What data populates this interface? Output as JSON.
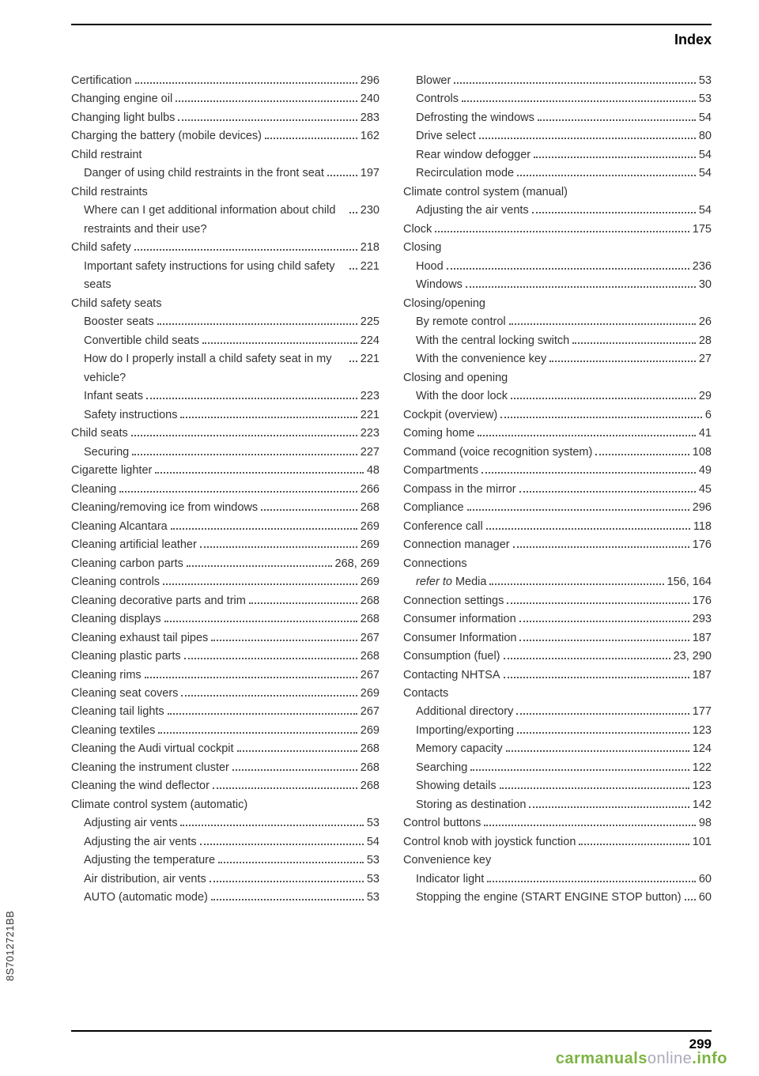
{
  "header": {
    "title": "Index"
  },
  "spine": "8S7012721BB",
  "footer": {
    "page": "299"
  },
  "watermark": {
    "a": "carmanuals",
    "b": "online",
    "c": ".info"
  },
  "left": [
    {
      "t": "e",
      "label": "Certification",
      "pg": "296"
    },
    {
      "t": "e",
      "label": "Changing engine oil",
      "pg": "240"
    },
    {
      "t": "e",
      "label": "Changing light bulbs",
      "pg": "283"
    },
    {
      "t": "e",
      "label": "Charging the battery (mobile devices)",
      "pg": "162"
    },
    {
      "t": "h",
      "label": "Child restraint"
    },
    {
      "t": "s",
      "label": "Danger of using child restraints in the front seat",
      "pg": "197"
    },
    {
      "t": "h",
      "label": "Child restraints"
    },
    {
      "t": "s",
      "label": "Where can I get additional information about child restraints and their use?",
      "pg": "230"
    },
    {
      "t": "e",
      "label": "Child safety",
      "pg": "218"
    },
    {
      "t": "s",
      "label": "Important safety instructions for using child safety seats",
      "pg": "221"
    },
    {
      "t": "h",
      "label": "Child safety seats"
    },
    {
      "t": "s",
      "label": "Booster seats",
      "pg": "225"
    },
    {
      "t": "s",
      "label": "Convertible child seats",
      "pg": "224"
    },
    {
      "t": "s",
      "label": "How do I properly install a child safety seat in my vehicle?",
      "pg": "221"
    },
    {
      "t": "s",
      "label": "Infant seats",
      "pg": "223"
    },
    {
      "t": "s",
      "label": "Safety instructions",
      "pg": "221"
    },
    {
      "t": "e",
      "label": "Child seats",
      "pg": "223"
    },
    {
      "t": "s",
      "label": "Securing",
      "pg": "227"
    },
    {
      "t": "e",
      "label": "Cigarette lighter",
      "pg": "48"
    },
    {
      "t": "e",
      "label": "Cleaning",
      "pg": "266"
    },
    {
      "t": "e",
      "label": "Cleaning/removing ice from windows",
      "pg": "268"
    },
    {
      "t": "e",
      "label": "Cleaning Alcantara",
      "pg": "269"
    },
    {
      "t": "e",
      "label": "Cleaning artificial leather",
      "pg": "269"
    },
    {
      "t": "e",
      "label": "Cleaning carbon parts",
      "pg": "268, 269"
    },
    {
      "t": "e",
      "label": "Cleaning controls",
      "pg": "269"
    },
    {
      "t": "e",
      "label": "Cleaning decorative parts and trim",
      "pg": "268"
    },
    {
      "t": "e",
      "label": "Cleaning displays",
      "pg": "268"
    },
    {
      "t": "e",
      "label": "Cleaning exhaust tail pipes",
      "pg": "267"
    },
    {
      "t": "e",
      "label": "Cleaning plastic parts",
      "pg": "268"
    },
    {
      "t": "e",
      "label": "Cleaning rims",
      "pg": "267"
    },
    {
      "t": "e",
      "label": "Cleaning seat covers",
      "pg": "269"
    },
    {
      "t": "e",
      "label": "Cleaning tail lights",
      "pg": "267"
    },
    {
      "t": "e",
      "label": "Cleaning textiles",
      "pg": "269"
    },
    {
      "t": "e",
      "label": "Cleaning the Audi virtual cockpit",
      "pg": "268"
    },
    {
      "t": "e",
      "label": "Cleaning the instrument cluster",
      "pg": "268"
    },
    {
      "t": "e",
      "label": "Cleaning the wind deflector",
      "pg": "268"
    },
    {
      "t": "h",
      "label": "Climate control system (automatic)"
    },
    {
      "t": "s",
      "label": "Adjusting air vents",
      "pg": "53"
    },
    {
      "t": "s",
      "label": "Adjusting the air vents",
      "pg": "54"
    },
    {
      "t": "s",
      "label": "Adjusting the temperature",
      "pg": "53"
    },
    {
      "t": "s",
      "label": "Air distribution, air vents",
      "pg": "53"
    },
    {
      "t": "s",
      "label": "AUTO (automatic mode)",
      "pg": "53"
    }
  ],
  "right": [
    {
      "t": "s",
      "label": "Blower",
      "pg": "53"
    },
    {
      "t": "s",
      "label": "Controls",
      "pg": "53"
    },
    {
      "t": "s",
      "label": "Defrosting the windows",
      "pg": "54"
    },
    {
      "t": "s",
      "label": "Drive select",
      "pg": "80"
    },
    {
      "t": "s",
      "label": "Rear window defogger",
      "pg": "54"
    },
    {
      "t": "s",
      "label": "Recirculation mode",
      "pg": "54"
    },
    {
      "t": "h",
      "label": "Climate control system (manual)"
    },
    {
      "t": "s",
      "label": "Adjusting the air vents",
      "pg": "54"
    },
    {
      "t": "e",
      "label": "Clock",
      "pg": "175"
    },
    {
      "t": "h",
      "label": "Closing"
    },
    {
      "t": "s",
      "label": "Hood",
      "pg": "236"
    },
    {
      "t": "s",
      "label": "Windows",
      "pg": "30"
    },
    {
      "t": "h",
      "label": "Closing/opening"
    },
    {
      "t": "s",
      "label": "By remote control",
      "pg": "26"
    },
    {
      "t": "s",
      "label": "With the central locking switch",
      "pg": "28"
    },
    {
      "t": "s",
      "label": "With the convenience key",
      "pg": "27"
    },
    {
      "t": "h",
      "label": "Closing and opening"
    },
    {
      "t": "s",
      "label": "With the door lock",
      "pg": "29"
    },
    {
      "t": "e",
      "label": "Cockpit (overview)",
      "pg": "6"
    },
    {
      "t": "e",
      "label": "Coming home",
      "pg": "41"
    },
    {
      "t": "e",
      "label": "Command (voice recognition system)",
      "pg": "108"
    },
    {
      "t": "e",
      "label": "Compartments",
      "pg": "49"
    },
    {
      "t": "e",
      "label": "Compass in the mirror",
      "pg": "45"
    },
    {
      "t": "e",
      "label": "Compliance",
      "pg": "296"
    },
    {
      "t": "e",
      "label": "Conference call",
      "pg": "118"
    },
    {
      "t": "e",
      "label": "Connection manager",
      "pg": "176"
    },
    {
      "t": "h",
      "label": "Connections"
    },
    {
      "t": "si",
      "prefix": "refer to",
      "label": " Media",
      "pg": "156, 164"
    },
    {
      "t": "e",
      "label": "Connection settings",
      "pg": "176"
    },
    {
      "t": "e",
      "label": "Consumer information",
      "pg": "293"
    },
    {
      "t": "e",
      "label": "Consumer Information",
      "pg": "187"
    },
    {
      "t": "e",
      "label": "Consumption (fuel)",
      "pg": "23, 290"
    },
    {
      "t": "e",
      "label": "Contacting NHTSA",
      "pg": "187"
    },
    {
      "t": "h",
      "label": "Contacts"
    },
    {
      "t": "s",
      "label": "Additional directory",
      "pg": "177"
    },
    {
      "t": "s",
      "label": "Importing/exporting",
      "pg": "123"
    },
    {
      "t": "s",
      "label": "Memory capacity",
      "pg": "124"
    },
    {
      "t": "s",
      "label": "Searching",
      "pg": "122"
    },
    {
      "t": "s",
      "label": "Showing details",
      "pg": "123"
    },
    {
      "t": "s",
      "label": "Storing as destination",
      "pg": "142"
    },
    {
      "t": "e",
      "label": "Control buttons",
      "pg": "98"
    },
    {
      "t": "e",
      "label": "Control knob with joystick function",
      "pg": "101"
    },
    {
      "t": "h",
      "label": "Convenience key"
    },
    {
      "t": "s",
      "label": "Indicator light",
      "pg": "60"
    },
    {
      "t": "s",
      "label": "Stopping the engine (START ENGINE STOP button)",
      "pg": "60"
    }
  ]
}
